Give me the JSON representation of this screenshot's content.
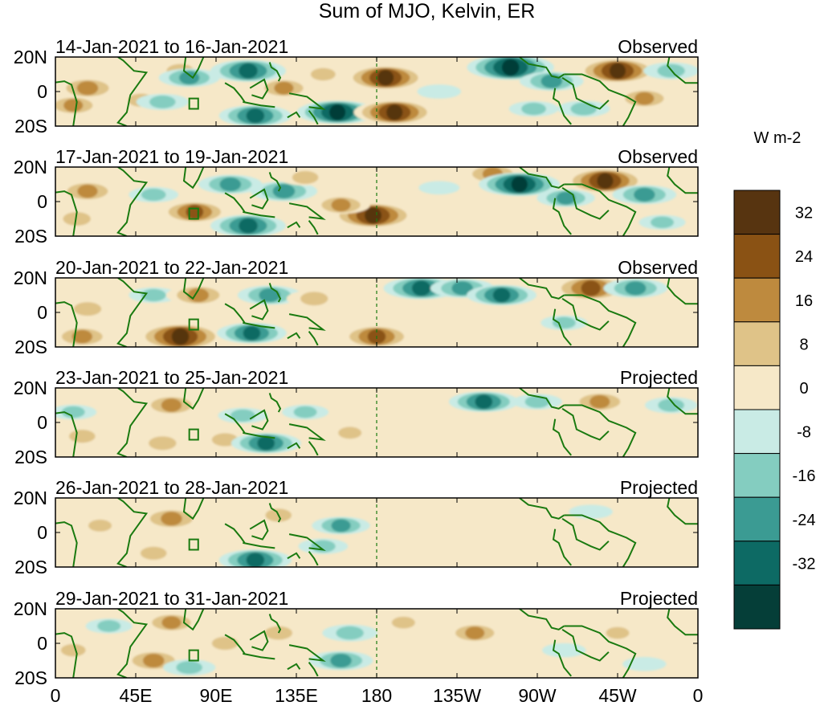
{
  "chart_data": {
    "type": "heatmap",
    "title": "Sum of MJO, Kelvin, ER",
    "colorbar": {
      "units": "W m-2",
      "tick_labels": [
        "32",
        "24",
        "16",
        "8",
        "0",
        "-8",
        "-16",
        "-24",
        "-32"
      ],
      "levels": [
        40,
        32,
        24,
        16,
        8,
        0,
        -8,
        -16,
        -24,
        -32,
        -40
      ],
      "colors": [
        "#573410",
        "#8a5214",
        "#be8a3e",
        "#dfc388",
        "#f6e8c8",
        "#c9ebe5",
        "#84cdc0",
        "#3b9b93",
        "#0d6a64",
        "#053e38"
      ]
    },
    "lat_range": [
      -20,
      20
    ],
    "lon_range": [
      0,
      360
    ],
    "x_ticks": [
      {
        "lon": 0,
        "label": "0"
      },
      {
        "lon": 45,
        "label": "45E"
      },
      {
        "lon": 90,
        "label": "90E"
      },
      {
        "lon": 135,
        "label": "135E"
      },
      {
        "lon": 180,
        "label": "180"
      },
      {
        "lon": 225,
        "label": "135W"
      },
      {
        "lon": 270,
        "label": "90W"
      },
      {
        "lon": 315,
        "label": "45W"
      },
      {
        "lon": 360,
        "label": "0"
      }
    ],
    "y_ticks": [
      {
        "lat": 20,
        "label": "20N"
      },
      {
        "lat": 0,
        "label": "0"
      },
      {
        "lat": -20,
        "label": "20S"
      }
    ],
    "panels": [
      {
        "dates": "14-Jan-2021 to 16-Jan-2021",
        "status": "Observed",
        "anomalies": [
          {
            "lon": 18,
            "lat": 2,
            "value": 22
          },
          {
            "lon": 10,
            "lat": -8,
            "value": 18
          },
          {
            "lon": 48,
            "lat": -5,
            "value": 14
          },
          {
            "lon": 70,
            "lat": 12,
            "value": 16
          },
          {
            "lon": 60,
            "lat": -6,
            "value": -14
          },
          {
            "lon": 75,
            "lat": 8,
            "value": -20
          },
          {
            "lon": 108,
            "lat": 12,
            "value": -30
          },
          {
            "lon": 112,
            "lat": -14,
            "value": -28
          },
          {
            "lon": 128,
            "lat": 2,
            "value": 18
          },
          {
            "lon": 150,
            "lat": 10,
            "value": 12
          },
          {
            "lon": 158,
            "lat": -12,
            "value": -34
          },
          {
            "lon": 185,
            "lat": 8,
            "value": 34
          },
          {
            "lon": 190,
            "lat": -12,
            "value": 34
          },
          {
            "lon": 215,
            "lat": 0,
            "value": -8
          },
          {
            "lon": 255,
            "lat": 14,
            "value": -38
          },
          {
            "lon": 278,
            "lat": 6,
            "value": -22
          },
          {
            "lon": 268,
            "lat": -10,
            "value": -12
          },
          {
            "lon": 315,
            "lat": 12,
            "value": 34
          },
          {
            "lon": 330,
            "lat": -4,
            "value": 18
          },
          {
            "lon": 345,
            "lat": 12,
            "value": -16
          },
          {
            "lon": 296,
            "lat": -10,
            "value": -14
          }
        ]
      },
      {
        "dates": "17-Jan-2021 to 19-Jan-2021",
        "status": "Observed",
        "anomalies": [
          {
            "lon": 18,
            "lat": 6,
            "value": 20
          },
          {
            "lon": 12,
            "lat": -10,
            "value": 16
          },
          {
            "lon": 55,
            "lat": 4,
            "value": -12
          },
          {
            "lon": 78,
            "lat": -6,
            "value": 26
          },
          {
            "lon": 98,
            "lat": 10,
            "value": -22
          },
          {
            "lon": 108,
            "lat": -14,
            "value": -30
          },
          {
            "lon": 128,
            "lat": 6,
            "value": -24
          },
          {
            "lon": 140,
            "lat": 14,
            "value": 14
          },
          {
            "lon": 178,
            "lat": -8,
            "value": 36
          },
          {
            "lon": 160,
            "lat": -2,
            "value": 18
          },
          {
            "lon": 215,
            "lat": 8,
            "value": -6
          },
          {
            "lon": 245,
            "lat": 16,
            "value": 20
          },
          {
            "lon": 260,
            "lat": 10,
            "value": -34
          },
          {
            "lon": 286,
            "lat": 2,
            "value": -18
          },
          {
            "lon": 308,
            "lat": 12,
            "value": 34
          },
          {
            "lon": 330,
            "lat": 4,
            "value": -22
          },
          {
            "lon": 340,
            "lat": -12,
            "value": -10
          }
        ]
      },
      {
        "dates": "20-Jan-2021 to 22-Jan-2021",
        "status": "Observed",
        "anomalies": [
          {
            "lon": 18,
            "lat": 2,
            "value": 16
          },
          {
            "lon": 15,
            "lat": -14,
            "value": 20
          },
          {
            "lon": 55,
            "lat": 10,
            "value": -12
          },
          {
            "lon": 70,
            "lat": -14,
            "value": 38
          },
          {
            "lon": 80,
            "lat": 10,
            "value": 22
          },
          {
            "lon": 110,
            "lat": -12,
            "value": -26
          },
          {
            "lon": 120,
            "lat": 10,
            "value": -22
          },
          {
            "lon": 145,
            "lat": 8,
            "value": 16
          },
          {
            "lon": 180,
            "lat": -14,
            "value": 28
          },
          {
            "lon": 205,
            "lat": 14,
            "value": -30
          },
          {
            "lon": 228,
            "lat": 14,
            "value": -22
          },
          {
            "lon": 250,
            "lat": 10,
            "value": -26
          },
          {
            "lon": 300,
            "lat": 14,
            "value": 32
          },
          {
            "lon": 325,
            "lat": 14,
            "value": -22
          },
          {
            "lon": 285,
            "lat": -6,
            "value": -10
          },
          {
            "lon": 345,
            "lat": 0,
            "value": 8
          }
        ]
      },
      {
        "dates": "23-Jan-2021 to 25-Jan-2021",
        "status": "Projected",
        "anomalies": [
          {
            "lon": 10,
            "lat": 6,
            "value": -10
          },
          {
            "lon": 15,
            "lat": -8,
            "value": 14
          },
          {
            "lon": 65,
            "lat": 10,
            "value": 20
          },
          {
            "lon": 60,
            "lat": -12,
            "value": 16
          },
          {
            "lon": 95,
            "lat": -10,
            "value": 14
          },
          {
            "lon": 105,
            "lat": 4,
            "value": -12
          },
          {
            "lon": 118,
            "lat": -12,
            "value": -26
          },
          {
            "lon": 140,
            "lat": 6,
            "value": -10
          },
          {
            "lon": 165,
            "lat": -6,
            "value": 10
          },
          {
            "lon": 205,
            "lat": 2,
            "value": 8
          },
          {
            "lon": 240,
            "lat": 12,
            "value": -26
          },
          {
            "lon": 270,
            "lat": 12,
            "value": -12
          },
          {
            "lon": 305,
            "lat": 12,
            "value": 20
          },
          {
            "lon": 345,
            "lat": 10,
            "value": -14
          }
        ]
      },
      {
        "dates": "26-Jan-2021 to 28-Jan-2021",
        "status": "Projected",
        "anomalies": [
          {
            "lon": 25,
            "lat": 4,
            "value": 10
          },
          {
            "lon": 65,
            "lat": 8,
            "value": 22
          },
          {
            "lon": 55,
            "lat": -12,
            "value": 14
          },
          {
            "lon": 112,
            "lat": -16,
            "value": -28
          },
          {
            "lon": 125,
            "lat": 10,
            "value": 14
          },
          {
            "lon": 160,
            "lat": 4,
            "value": -18
          },
          {
            "lon": 150,
            "lat": -8,
            "value": -12
          },
          {
            "lon": 220,
            "lat": 10,
            "value": 8
          },
          {
            "lon": 260,
            "lat": 0,
            "value": 6
          },
          {
            "lon": 300,
            "lat": 12,
            "value": -8
          },
          {
            "lon": 320,
            "lat": -6,
            "value": 8
          },
          {
            "lon": 340,
            "lat": 10,
            "value": 6
          }
        ]
      },
      {
        "dates": "29-Jan-2021 to 31-Jan-2021",
        "status": "Projected",
        "anomalies": [
          {
            "lon": 10,
            "lat": -4,
            "value": 12
          },
          {
            "lon": 30,
            "lat": 10,
            "value": -10
          },
          {
            "lon": 65,
            "lat": 12,
            "value": 18
          },
          {
            "lon": 55,
            "lat": -10,
            "value": 22
          },
          {
            "lon": 75,
            "lat": -14,
            "value": -14
          },
          {
            "lon": 95,
            "lat": 0,
            "value": 14
          },
          {
            "lon": 125,
            "lat": 6,
            "value": 16
          },
          {
            "lon": 165,
            "lat": 6,
            "value": -16
          },
          {
            "lon": 160,
            "lat": -10,
            "value": -22
          },
          {
            "lon": 195,
            "lat": 12,
            "value": 10
          },
          {
            "lon": 235,
            "lat": 6,
            "value": 18
          },
          {
            "lon": 285,
            "lat": -4,
            "value": -8
          },
          {
            "lon": 315,
            "lat": 6,
            "value": 10
          },
          {
            "lon": 330,
            "lat": -12,
            "value": -8
          }
        ]
      }
    ]
  }
}
